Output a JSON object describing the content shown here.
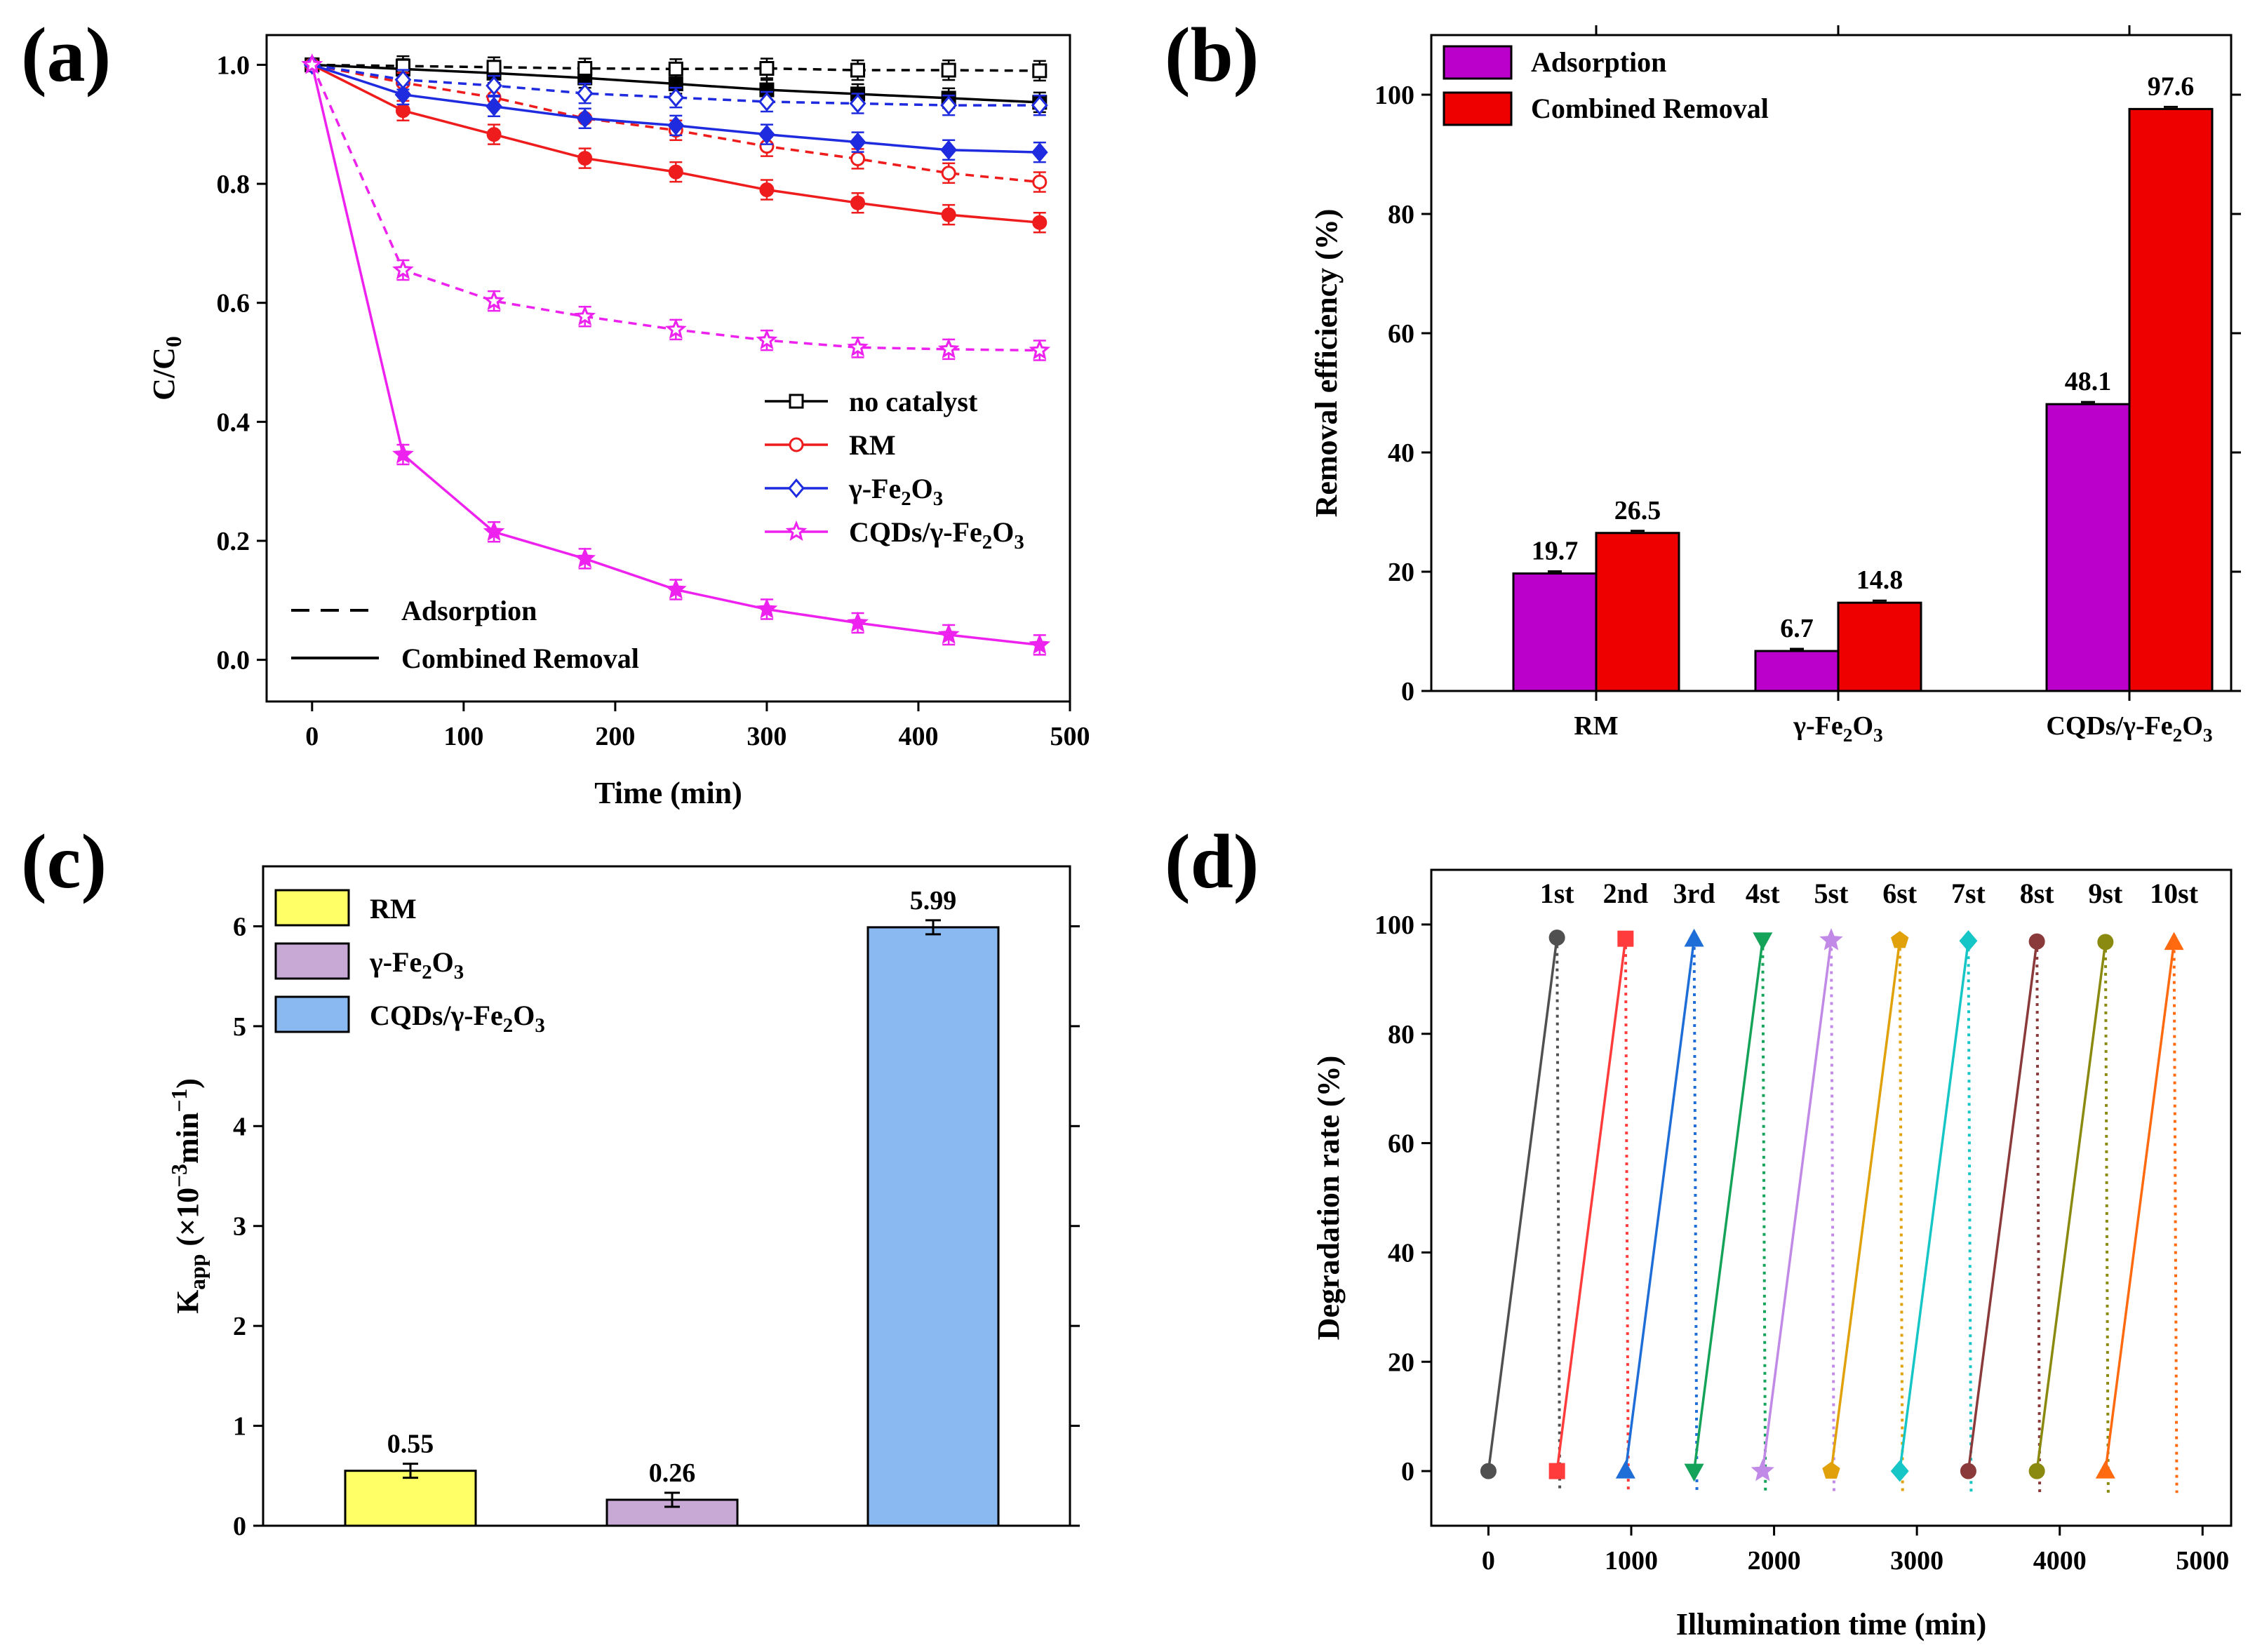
{
  "panel_labels": [
    "(a)",
    "(b)",
    "(c)",
    "(d)"
  ],
  "chart_data": [
    {
      "panel": "(a)",
      "type": "line",
      "xlabel": "Time (min)",
      "ylabel": "C/C",
      "ylabel_sub": "0",
      "xlim": [
        -30,
        500
      ],
      "ylim": [
        -0.07,
        1.05
      ],
      "xticks": [
        0,
        100,
        200,
        300,
        400,
        500
      ],
      "yticks": [
        0.0,
        0.2,
        0.4,
        0.6,
        0.8,
        1.0
      ],
      "ytick_labels": [
        "0.0",
        "0.2",
        "0.4",
        "0.6",
        "0.8",
        "1.0"
      ],
      "x": [
        0,
        60,
        120,
        180,
        240,
        300,
        360,
        420,
        480
      ],
      "series": [
        {
          "name": "no catalyst",
          "color": "#000000",
          "marker": "square",
          "style": "solid",
          "values": [
            1.0,
            0.993,
            0.986,
            0.978,
            0.968,
            0.958,
            0.951,
            0.944,
            0.937
          ]
        },
        {
          "name": "no catalyst",
          "color": "#000000",
          "marker": "square-open",
          "style": "dashed",
          "values": [
            1.0,
            0.998,
            0.996,
            0.994,
            0.993,
            0.994,
            0.991,
            0.991,
            0.99
          ]
        },
        {
          "name": "RM",
          "color": "#ee1c1c",
          "marker": "circle",
          "style": "solid",
          "values": [
            1.0,
            0.923,
            0.883,
            0.843,
            0.82,
            0.79,
            0.768,
            0.748,
            0.735
          ]
        },
        {
          "name": "RM",
          "color": "#ee1c1c",
          "marker": "circle-open",
          "style": "dashed",
          "values": [
            1.0,
            0.97,
            0.945,
            0.91,
            0.89,
            0.863,
            0.842,
            0.818,
            0.803
          ]
        },
        {
          "name": "γ-Fe2O3",
          "color": "#1f2bde",
          "marker": "diamond",
          "style": "solid",
          "values": [
            1.0,
            0.95,
            0.93,
            0.91,
            0.898,
            0.883,
            0.87,
            0.857,
            0.853
          ]
        },
        {
          "name": "γ-Fe2O3",
          "color": "#1f2bde",
          "marker": "diamond-open",
          "style": "dashed",
          "values": [
            1.0,
            0.975,
            0.965,
            0.952,
            0.945,
            0.938,
            0.935,
            0.932,
            0.932
          ]
        },
        {
          "name": "CQDs/γ-Fe2O3",
          "color": "#ee22ee",
          "marker": "star",
          "style": "solid",
          "values": [
            1.0,
            0.345,
            0.215,
            0.17,
            0.118,
            0.085,
            0.062,
            0.042,
            0.025
          ]
        },
        {
          "name": "CQDs/γ-Fe2O3",
          "color": "#ee22ee",
          "marker": "star-open",
          "style": "dashed",
          "values": [
            1.0,
            0.655,
            0.603,
            0.577,
            0.555,
            0.537,
            0.525,
            0.522,
            0.52
          ]
        }
      ],
      "legend": [
        {
          "label": "no catalyst",
          "color": "#000000",
          "marker": "square"
        },
        {
          "label": "RM",
          "color": "#ee1c1c",
          "marker": "circle"
        },
        {
          "label": "γ-Fe",
          "sub1": "2",
          "mid": "O",
          "sub2": "3",
          "color": "#1f2bde",
          "marker": "diamond"
        },
        {
          "label": "CQDs/γ-Fe",
          "sub1": "2",
          "mid": "O",
          "sub2": "3",
          "color": "#ee22ee",
          "marker": "star"
        }
      ],
      "style_legend": [
        {
          "label": "Adsorption",
          "style": "dashed"
        },
        {
          "label": "Combined Removal",
          "style": "solid"
        }
      ]
    },
    {
      "panel": "(b)",
      "type": "bar",
      "ylabel": "Removal efficiency (%)",
      "ylim": [
        0,
        110
      ],
      "yticks": [
        0,
        20,
        40,
        60,
        80,
        100
      ],
      "categories": [
        {
          "label": "RM"
        },
        {
          "label": "γ-Fe",
          "sub1": "2",
          "mid": "O",
          "sub2": "3"
        },
        {
          "label": "CQDs/γ-Fe",
          "sub1": "2",
          "mid": "O",
          "sub2": "3"
        }
      ],
      "series": [
        {
          "name": "Adsorption",
          "color": "#bb00cc",
          "values": [
            19.7,
            6.7,
            48.1
          ],
          "labels": [
            "19.7",
            "6.7",
            "48.1"
          ]
        },
        {
          "name": "Combined Removal",
          "color": "#ee0000",
          "values": [
            26.5,
            14.8,
            97.6
          ],
          "labels": [
            "26.5",
            "14.8",
            "97.6"
          ]
        }
      ],
      "legend_position": "top-left"
    },
    {
      "panel": "(c)",
      "type": "bar",
      "ylabel_main": "K",
      "ylabel_sub": "app",
      "ylabel_rest": " (×10",
      "ylabel_sup": "−3",
      "ylabel_tail": "min",
      "ylabel_sup2": "−1",
      "ylabel_close": ")",
      "ylim": [
        0,
        6.6
      ],
      "yticks": [
        0,
        1,
        2,
        3,
        4,
        5,
        6
      ],
      "categories": [
        "RM",
        "γ-Fe2O3",
        "CQDs/γ-Fe2O3"
      ],
      "values": [
        0.55,
        0.26,
        5.99
      ],
      "value_labels": [
        "0.55",
        "0.26",
        "5.99"
      ],
      "colors": [
        "#ffff66",
        "#c8a9d6",
        "#8ab9f2"
      ],
      "legend": [
        {
          "label": "RM",
          "color": "#ffff66"
        },
        {
          "label": "γ-Fe",
          "sub1": "2",
          "mid": "O",
          "sub2": "3",
          "color": "#c8a9d6"
        },
        {
          "label": "CQDs/γ-Fe",
          "sub1": "2",
          "mid": "O",
          "sub2": "3",
          "color": "#8ab9f2"
        }
      ]
    },
    {
      "panel": "(d)",
      "type": "line",
      "xlabel": "Illumination time (min)",
      "ylabel": "Degradation rate (%)",
      "xlim": [
        -400,
        5200
      ],
      "ylim": [
        -10,
        110
      ],
      "xticks": [
        0,
        1000,
        2000,
        3000,
        4000,
        5000
      ],
      "yticks": [
        0,
        20,
        40,
        60,
        80,
        100
      ],
      "cycles": [
        {
          "label": "1st",
          "color": "#505050",
          "marker": "circle",
          "x_start": 0,
          "x_end": 480,
          "x_label": 480,
          "y_start": 0,
          "y_end": 97.6
        },
        {
          "label": "2nd",
          "color": "#ff3b3b",
          "marker": "square",
          "x_start": 480,
          "x_end": 960,
          "x_label": 960,
          "y_start": 0,
          "y_end": 97.4
        },
        {
          "label": "3rd",
          "color": "#1f6ed8",
          "marker": "triangle",
          "x_start": 960,
          "x_end": 1440,
          "x_label": 1440,
          "y_start": 0,
          "y_end": 97.3
        },
        {
          "label": "4st",
          "color": "#15a35a",
          "marker": "triangle-down",
          "x_start": 1440,
          "x_end": 1920,
          "x_label": 1920,
          "y_start": 0,
          "y_end": 97.2
        },
        {
          "label": "5st",
          "color": "#c18ae6",
          "marker": "star",
          "x_start": 1920,
          "x_end": 2400,
          "x_label": 2400,
          "y_start": 0,
          "y_end": 97.1
        },
        {
          "label": "6st",
          "color": "#e0a10a",
          "marker": "pentagon",
          "x_start": 2400,
          "x_end": 2880,
          "x_label": 2880,
          "y_start": 0,
          "y_end": 97.1
        },
        {
          "label": "7st",
          "color": "#16c6c6",
          "marker": "diamond",
          "x_start": 2880,
          "x_end": 3360,
          "x_label": 3360,
          "y_start": 0,
          "y_end": 97.0
        },
        {
          "label": "8st",
          "color": "#8a3a3a",
          "marker": "circle",
          "x_start": 3360,
          "x_end": 3840,
          "x_label": 3840,
          "y_start": 0,
          "y_end": 96.9
        },
        {
          "label": "9st",
          "color": "#8a8a10",
          "marker": "circle",
          "x_start": 3840,
          "x_end": 4320,
          "x_label": 4320,
          "y_start": 0,
          "y_end": 96.8
        },
        {
          "label": "10st",
          "color": "#ff6a10",
          "marker": "triangle",
          "x_start": 4320,
          "x_end": 4800,
          "x_label": 4800,
          "y_start": 0,
          "y_end": 96.7
        }
      ]
    }
  ]
}
